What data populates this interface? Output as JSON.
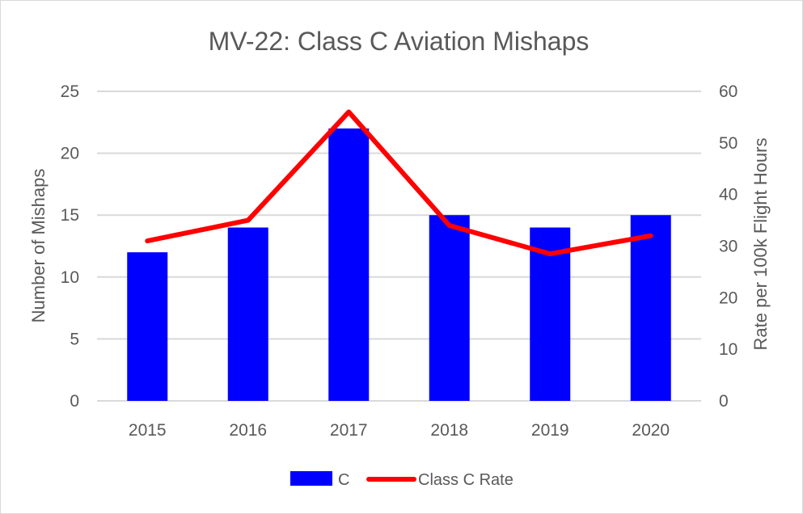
{
  "chart_data": {
    "type": "bar",
    "title": "MV-22: Class C Aviation Mishaps",
    "categories": [
      "2015",
      "2016",
      "2017",
      "2018",
      "2019",
      "2020"
    ],
    "series": [
      {
        "name": "C",
        "type": "bar",
        "axis": "left",
        "color": "#0000ff",
        "values": [
          12,
          14,
          22,
          15,
          14,
          15
        ]
      },
      {
        "name": "Class C Rate",
        "type": "line",
        "axis": "right",
        "color": "#ff0000",
        "values": [
          31,
          35,
          56,
          34,
          28.5,
          32
        ]
      }
    ],
    "ylabel": "Number of Mishaps",
    "ylim": [
      0,
      25
    ],
    "yticks": [
      0,
      5,
      10,
      15,
      20,
      25
    ],
    "y2label": "Rate per 100k Flight Hours",
    "y2lim": [
      0,
      60
    ],
    "y2ticks": [
      0,
      10,
      20,
      30,
      40,
      50,
      60
    ],
    "grid": true,
    "legend": "bottom",
    "gridline_color": "#d9d9d9"
  }
}
